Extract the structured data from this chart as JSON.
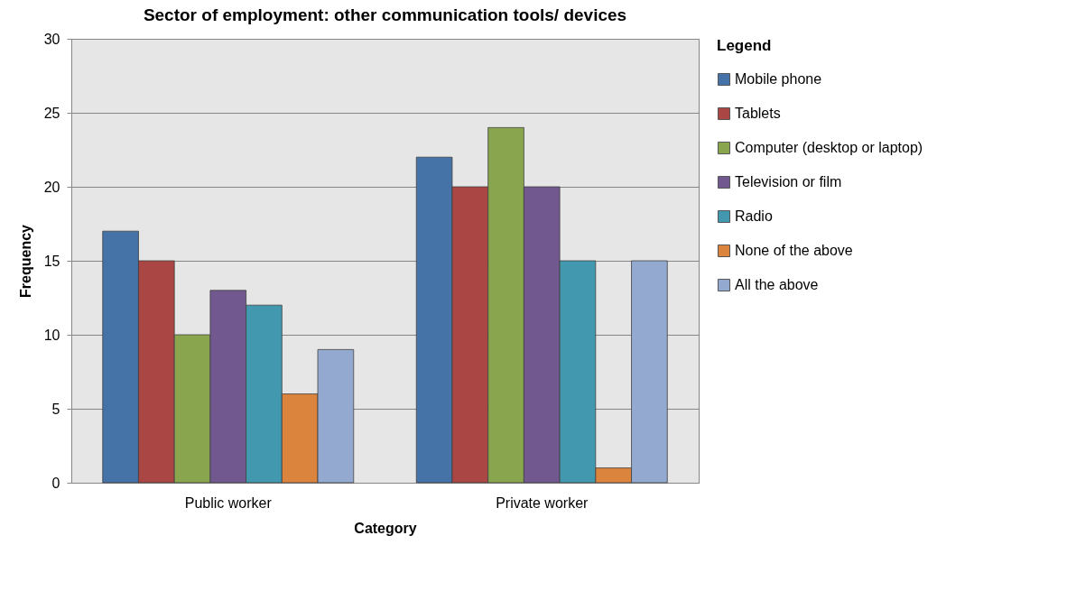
{
  "chart_data": {
    "type": "bar",
    "title": "Sector of employment: other communication tools/ devices",
    "xlabel": "Category",
    "ylabel": "Frequency",
    "legend_title": "Legend",
    "categories": [
      "Public worker",
      "Private worker"
    ],
    "series": [
      {
        "name": "Mobile phone",
        "color": "#4572a7",
        "values": [
          17,
          22
        ]
      },
      {
        "name": "Tablets",
        "color": "#aa4643",
        "values": [
          15,
          20
        ]
      },
      {
        "name": "Computer (desktop or laptop)",
        "color": "#89a54e",
        "values": [
          10,
          24
        ]
      },
      {
        "name": "Television or film",
        "color": "#71588f",
        "values": [
          13,
          20
        ]
      },
      {
        "name": "Radio",
        "color": "#4198af",
        "values": [
          12,
          15
        ]
      },
      {
        "name": "None of the above",
        "color": "#db843d",
        "values": [
          6,
          1
        ]
      },
      {
        "name": "All the above",
        "color": "#93a9cf",
        "values": [
          9,
          15
        ]
      }
    ],
    "ylim": [
      0,
      30
    ],
    "yticks": [
      0,
      5,
      10,
      15,
      20,
      25,
      30
    ],
    "grid": "y",
    "legend": "right"
  }
}
